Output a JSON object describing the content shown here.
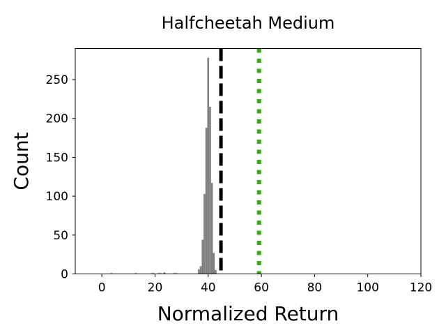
{
  "chart_data": {
    "type": "bar",
    "title": "Halfcheetah Medium",
    "xlabel": "Normalized Return",
    "ylabel": "Count",
    "xlim": [
      -10,
      120
    ],
    "ylim": [
      0,
      290
    ],
    "xticks": [
      0,
      20,
      40,
      60,
      80,
      100,
      120
    ],
    "yticks": [
      0,
      50,
      100,
      150,
      200,
      250
    ],
    "grid": false,
    "bin_width": 0.7,
    "histogram": [
      {
        "x": 3.6,
        "count": 1
      },
      {
        "x": 12.8,
        "count": 1
      },
      {
        "x": 18.8,
        "count": 1
      },
      {
        "x": 19.5,
        "count": 1
      },
      {
        "x": 21.4,
        "count": 1
      },
      {
        "x": 22.1,
        "count": 1
      },
      {
        "x": 23.5,
        "count": 2
      },
      {
        "x": 27.2,
        "count": 1
      },
      {
        "x": 28.0,
        "count": 1
      },
      {
        "x": 36.5,
        "count": 6
      },
      {
        "x": 37.2,
        "count": 10
      },
      {
        "x": 37.9,
        "count": 44
      },
      {
        "x": 38.6,
        "count": 103
      },
      {
        "x": 39.3,
        "count": 188
      },
      {
        "x": 40.0,
        "count": 278
      },
      {
        "x": 40.7,
        "count": 215
      },
      {
        "x": 41.4,
        "count": 117
      },
      {
        "x": 42.1,
        "count": 27
      },
      {
        "x": 42.8,
        "count": 5
      }
    ],
    "vlines": [
      {
        "x": 44.8,
        "style": "dashed",
        "color": "#000000"
      },
      {
        "x": 59.1,
        "style": "dotted",
        "color": "#33aa11"
      }
    ],
    "bar_color": "#808080"
  }
}
